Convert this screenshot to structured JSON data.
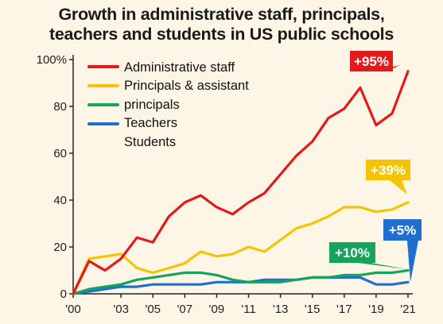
{
  "chart_data": {
    "type": "line",
    "title_lines": [
      "Growth in administrative staff, principals,",
      "teachers and students in US public schools"
    ],
    "xlabel": "",
    "ylabel": "",
    "ylim": [
      0,
      100
    ],
    "xlim": [
      2000,
      2021
    ],
    "y_ticks": [
      0,
      20,
      40,
      60,
      80,
      100
    ],
    "y_tick_labels": [
      "0",
      "20",
      "40",
      "60",
      "80",
      "100%"
    ],
    "x_ticks": [
      2000,
      2003,
      2005,
      2007,
      2009,
      2011,
      2013,
      2015,
      2017,
      2019,
      2021
    ],
    "x_tick_labels": [
      "'00",
      "'03",
      "'05",
      "'07",
      "'09",
      "'11",
      "'13",
      "'15",
      "'17",
      "'19",
      "'21"
    ],
    "grid": false,
    "legend_position": "top-left",
    "legend_lines": [
      "Administrative staff",
      "Principals & assistant",
      "principals",
      "Teachers",
      "Students"
    ],
    "series": [
      {
        "name": "Administrative staff",
        "color": "#e31a1c",
        "callout": "+95%",
        "x": [
          2000,
          2001,
          2002,
          2003,
          2004,
          2005,
          2006,
          2007,
          2008,
          2009,
          2010,
          2011,
          2012,
          2013,
          2014,
          2015,
          2016,
          2017,
          2018,
          2019,
          2020,
          2021
        ],
        "values": [
          0,
          14,
          10,
          15,
          24,
          22,
          33,
          39,
          42,
          37,
          34,
          39,
          43,
          51,
          59,
          65,
          75,
          79,
          88,
          72,
          77,
          95
        ]
      },
      {
        "name": "Principals & assistant principals",
        "color": "#f5c400",
        "callout": "+39%",
        "x": [
          2000,
          2001,
          2002,
          2003,
          2004,
          2005,
          2006,
          2007,
          2008,
          2009,
          2010,
          2011,
          2012,
          2013,
          2014,
          2015,
          2016,
          2017,
          2018,
          2019,
          2020,
          2021
        ],
        "values": [
          0,
          15,
          16,
          17,
          11,
          9,
          11,
          13,
          18,
          16,
          17,
          20,
          18,
          23,
          28,
          30,
          33,
          37,
          37,
          35,
          36,
          39
        ]
      },
      {
        "name": "Teachers",
        "color": "#16a35a",
        "callout": "+10%",
        "x": [
          2000,
          2001,
          2002,
          2003,
          2004,
          2005,
          2006,
          2007,
          2008,
          2009,
          2010,
          2011,
          2012,
          2013,
          2014,
          2015,
          2016,
          2017,
          2018,
          2019,
          2020,
          2021
        ],
        "values": [
          0,
          2,
          3,
          4,
          6,
          7,
          8,
          9,
          9,
          8,
          6,
          5,
          5,
          5,
          6,
          7,
          7,
          8,
          8,
          9,
          9,
          10
        ]
      },
      {
        "name": "Students",
        "color": "#1f6fd1",
        "callout": "+5%",
        "x": [
          2000,
          2001,
          2002,
          2003,
          2004,
          2005,
          2006,
          2007,
          2008,
          2009,
          2010,
          2011,
          2012,
          2013,
          2014,
          2015,
          2016,
          2017,
          2018,
          2019,
          2020,
          2021
        ],
        "values": [
          0,
          1,
          2,
          3,
          3,
          4,
          4,
          4,
          4,
          5,
          5,
          5,
          6,
          6,
          6,
          7,
          7,
          7,
          7,
          4,
          4,
          5
        ]
      }
    ]
  }
}
